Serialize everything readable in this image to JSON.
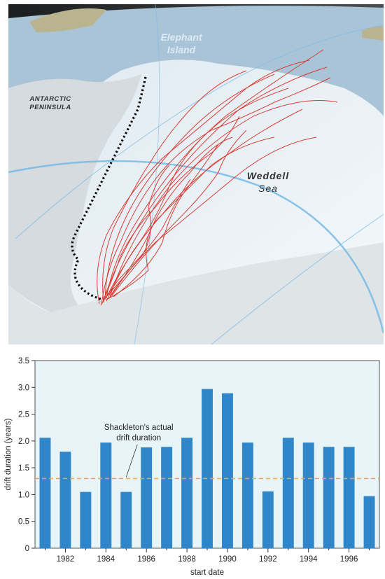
{
  "map": {
    "labels": {
      "elephant_island": [
        "Elephant",
        "Island"
      ],
      "antarctic_peninsula": [
        "ANTARCTIC",
        "PENINSULA"
      ],
      "weddell_sea": [
        "Weddell",
        "Sea"
      ]
    },
    "colors": {
      "ocean": "#9fbfd6",
      "ice": "#e8f1f6",
      "land": "#d5dadd",
      "drift_tracks": "#d9342b",
      "shackleton_track": "#000000",
      "graticule": "#6fb7e3"
    }
  },
  "chart_data": {
    "type": "bar",
    "categories": [
      "1981",
      "1982",
      "1983",
      "1984",
      "1985",
      "1986",
      "1987",
      "1988",
      "1989",
      "1990",
      "1991",
      "1992",
      "1993",
      "1994",
      "1995",
      "1996",
      "1997"
    ],
    "values": [
      2.06,
      1.8,
      1.05,
      1.97,
      1.05,
      1.88,
      1.89,
      2.06,
      2.97,
      2.89,
      1.97,
      1.06,
      2.06,
      1.97,
      1.89,
      1.89,
      0.97
    ],
    "xticks": [
      "1982",
      "1984",
      "1986",
      "1988",
      "1990",
      "1992",
      "1994",
      "1996"
    ],
    "yticks": [
      "0",
      "0.5",
      "1.0",
      "1.5",
      "2.0",
      "2.5",
      "3.0",
      "3.5"
    ],
    "ylim": [
      0,
      3.5
    ],
    "xlabel": "start date",
    "ylabel": "drift duration (years)",
    "reference_line": {
      "value": 1.3,
      "label": [
        "Shackleton's actual",
        "drift duration"
      ]
    },
    "grid": false,
    "colors": {
      "bar": "#2f86c9",
      "reference": "#f0a830",
      "background": "#e8f5f8"
    }
  }
}
